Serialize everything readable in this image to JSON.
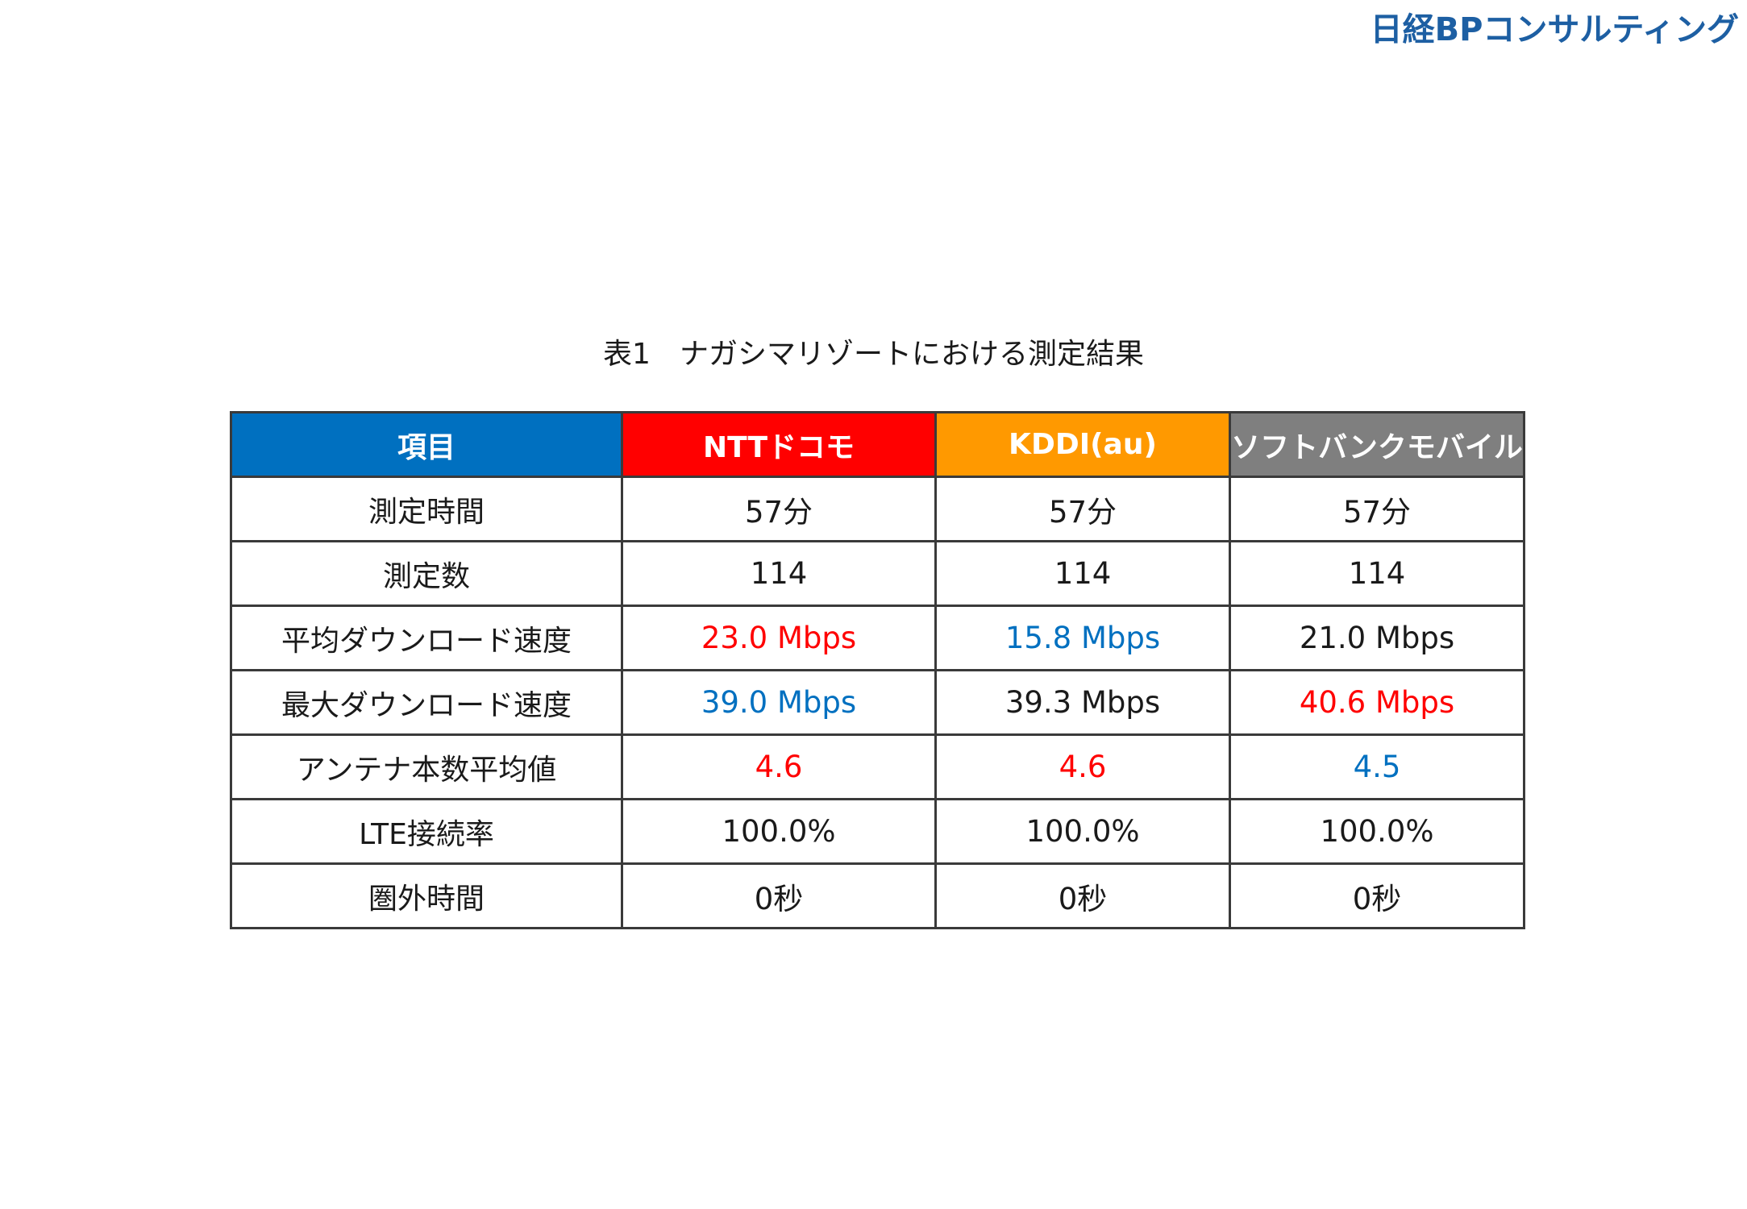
{
  "brand": {
    "logo_text": "日経BPコンサルティング"
  },
  "title": "表1　ナガシマリゾートにおける測定結果",
  "colors": {
    "header_item": "#0070c0",
    "header_docomo": "#ff0000",
    "header_kddi": "#ff9900",
    "header_softbank": "#7f7f7f",
    "value_best": "#ff0000",
    "value_worst": "#0070c0",
    "value_normal": "#1a1a1a",
    "logo": "#1d5fa3"
  },
  "table": {
    "headers": [
      {
        "label": "項目",
        "color": "#0070c0"
      },
      {
        "label": "NTTドコモ",
        "color": "#ff0000"
      },
      {
        "label": "KDDI(au)",
        "color": "#ff9900"
      },
      {
        "label": "ソフトバンクモバイル",
        "color": "#7f7f7f"
      }
    ],
    "rows": [
      {
        "label": "測定時間",
        "cells": [
          {
            "value": "57分",
            "color": "#1a1a1a"
          },
          {
            "value": "57分",
            "color": "#1a1a1a"
          },
          {
            "value": "57分",
            "color": "#1a1a1a"
          }
        ]
      },
      {
        "label": "測定数",
        "cells": [
          {
            "value": "114",
            "color": "#1a1a1a"
          },
          {
            "value": "114",
            "color": "#1a1a1a"
          },
          {
            "value": "114",
            "color": "#1a1a1a"
          }
        ]
      },
      {
        "label": "平均ダウンロード速度",
        "cells": [
          {
            "value": "23.0 Mbps",
            "color": "#ff0000"
          },
          {
            "value": "15.8 Mbps",
            "color": "#0070c0"
          },
          {
            "value": "21.0 Mbps",
            "color": "#1a1a1a"
          }
        ]
      },
      {
        "label": "最大ダウンロード速度",
        "cells": [
          {
            "value": "39.0 Mbps",
            "color": "#0070c0"
          },
          {
            "value": "39.3 Mbps",
            "color": "#1a1a1a"
          },
          {
            "value": "40.6 Mbps",
            "color": "#ff0000"
          }
        ]
      },
      {
        "label": "アンテナ本数平均値",
        "cells": [
          {
            "value": "4.6",
            "color": "#ff0000"
          },
          {
            "value": "4.6",
            "color": "#ff0000"
          },
          {
            "value": "4.5",
            "color": "#0070c0"
          }
        ]
      },
      {
        "label": "LTE接続率",
        "cells": [
          {
            "value": "100.0%",
            "color": "#1a1a1a"
          },
          {
            "value": "100.0%",
            "color": "#1a1a1a"
          },
          {
            "value": "100.0%",
            "color": "#1a1a1a"
          }
        ]
      },
      {
        "label": "圏外時間",
        "cells": [
          {
            "value": "0秒",
            "color": "#1a1a1a"
          },
          {
            "value": "0秒",
            "color": "#1a1a1a"
          },
          {
            "value": "0秒",
            "color": "#1a1a1a"
          }
        ]
      }
    ]
  }
}
